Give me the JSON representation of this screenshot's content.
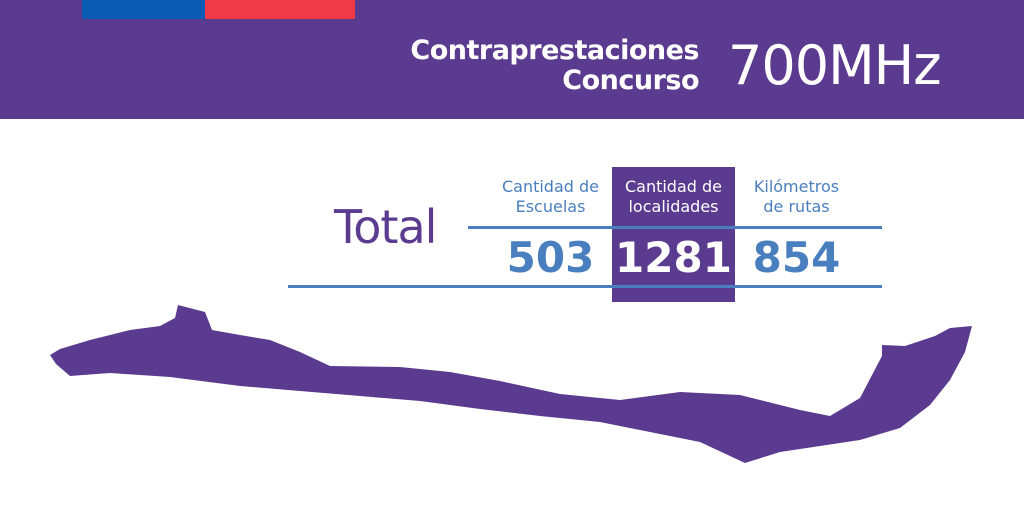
{
  "header": {
    "title_line1": "Contraprestaciones",
    "title_line2": "Concurso",
    "band": "700MHz",
    "flag_colors": [
      "#0b5cb5",
      "#ef3a47"
    ],
    "background": "#5b3b8f"
  },
  "summary": {
    "label": "Total",
    "columns": [
      {
        "label_line1": "Cantidad de",
        "label_line2": "Escuelas",
        "value": "503",
        "highlighted": false
      },
      {
        "label_line1": "Cantidad de",
        "label_line2": "localidades",
        "value": "1281",
        "highlighted": true
      },
      {
        "label_line1": "Kilómetros",
        "label_line2": "de rutas",
        "value": "854",
        "highlighted": false
      }
    ],
    "accent": "#4a7fbf"
  },
  "map": {
    "icon": "chile-map-icon",
    "color": "#5b3b8f"
  }
}
